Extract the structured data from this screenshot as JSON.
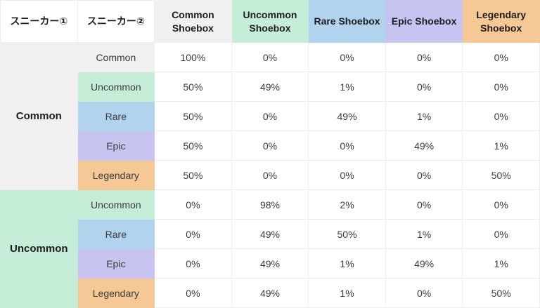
{
  "table": {
    "headers": [
      {
        "label": "スニーカー①",
        "color": null
      },
      {
        "label": "スニーカー②",
        "color": null
      },
      {
        "label": "Common Shoebox",
        "color": "gray"
      },
      {
        "label": "Uncommon Shoebox",
        "color": "green"
      },
      {
        "label": "Rare Shoebox",
        "color": "blue"
      },
      {
        "label": "Epic Shoebox",
        "color": "purple"
      },
      {
        "label": "Legendary Shoebox",
        "color": "orange"
      }
    ],
    "groups": [
      {
        "sneaker1": "Common",
        "sneaker1_color": "gray",
        "rows": [
          {
            "sneaker2": "Common",
            "color": "gray",
            "values": [
              "100%",
              "0%",
              "0%",
              "0%",
              "0%"
            ]
          },
          {
            "sneaker2": "Uncommon",
            "color": "green",
            "values": [
              "50%",
              "49%",
              "1%",
              "0%",
              "0%"
            ]
          },
          {
            "sneaker2": "Rare",
            "color": "blue",
            "values": [
              "50%",
              "0%",
              "49%",
              "1%",
              "0%"
            ]
          },
          {
            "sneaker2": "Epic",
            "color": "purple",
            "values": [
              "50%",
              "0%",
              "0%",
              "49%",
              "1%"
            ]
          },
          {
            "sneaker2": "Legendary",
            "color": "orange",
            "values": [
              "50%",
              "0%",
              "0%",
              "0%",
              "50%"
            ]
          }
        ]
      },
      {
        "sneaker1": "Uncommon",
        "sneaker1_color": "green",
        "rows": [
          {
            "sneaker2": "Uncommon",
            "color": "green",
            "values": [
              "0%",
              "98%",
              "2%",
              "0%",
              "0%"
            ]
          },
          {
            "sneaker2": "Rare",
            "color": "blue",
            "values": [
              "0%",
              "49%",
              "50%",
              "1%",
              "0%"
            ]
          },
          {
            "sneaker2": "Epic",
            "color": "purple",
            "values": [
              "0%",
              "49%",
              "1%",
              "49%",
              "1%"
            ]
          },
          {
            "sneaker2": "Legendary",
            "color": "orange",
            "values": [
              "0%",
              "49%",
              "1%",
              "0%",
              "50%"
            ]
          }
        ]
      }
    ]
  },
  "colors": {
    "gray": "#f1f0f0",
    "green": "#c6edd8",
    "blue": "#b2d3ee",
    "purple": "#c7c4f2",
    "orange": "#f5c896",
    "border": "#ededed",
    "text": "#3a3a3a",
    "heading_text": "#1d1d1d"
  },
  "chart_data": {
    "type": "table",
    "title": "",
    "columns": [
      "スニーカー①",
      "スニーカー②",
      "Common Shoebox",
      "Uncommon Shoebox",
      "Rare Shoebox",
      "Epic Shoebox",
      "Legendary Shoebox"
    ],
    "rows": [
      [
        "Common",
        "Common",
        "100%",
        "0%",
        "0%",
        "0%",
        "0%"
      ],
      [
        "Common",
        "Uncommon",
        "50%",
        "49%",
        "1%",
        "0%",
        "0%"
      ],
      [
        "Common",
        "Rare",
        "50%",
        "0%",
        "49%",
        "1%",
        "0%"
      ],
      [
        "Common",
        "Epic",
        "50%",
        "0%",
        "0%",
        "49%",
        "1%"
      ],
      [
        "Common",
        "Legendary",
        "50%",
        "0%",
        "0%",
        "0%",
        "50%"
      ],
      [
        "Uncommon",
        "Uncommon",
        "0%",
        "98%",
        "2%",
        "0%",
        "0%"
      ],
      [
        "Uncommon",
        "Rare",
        "0%",
        "49%",
        "50%",
        "1%",
        "0%"
      ],
      [
        "Uncommon",
        "Epic",
        "0%",
        "49%",
        "1%",
        "49%",
        "1%"
      ],
      [
        "Uncommon",
        "Legendary",
        "0%",
        "49%",
        "1%",
        "0%",
        "50%"
      ]
    ]
  }
}
